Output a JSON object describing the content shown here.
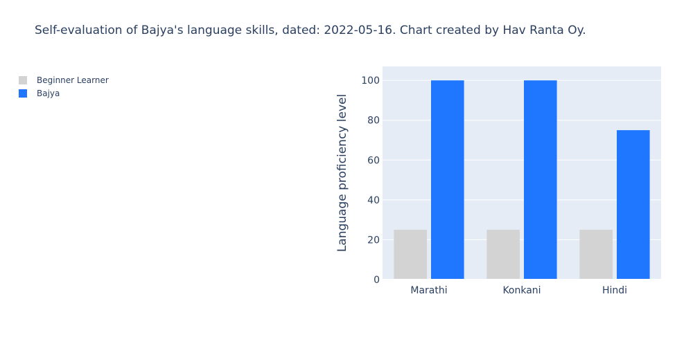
{
  "title": "Self-evaluation of Bajya's language skills, dated: 2022-05-16. Chart created by Hav Ranta Oy.",
  "colors": {
    "plot_bg": "#e5ecf6",
    "grid": "#ffffff",
    "text": "#2a3f5f"
  },
  "chart_data": {
    "type": "bar",
    "title": "Self-evaluation of Bajya's language skills, dated: 2022-05-16. Chart created by Hav Ranta Oy.",
    "xlabel": "",
    "ylabel": "Language proficiency level",
    "categories": [
      "Marathi",
      "Konkani",
      "Hindi"
    ],
    "ylim": [
      0,
      107
    ],
    "yticks": [
      0,
      20,
      40,
      60,
      80,
      100
    ],
    "grid": true,
    "legend_position": "top-left",
    "series": [
      {
        "name": "Beginner Learner",
        "color": "#d3d3d3",
        "values": [
          25,
          25,
          25
        ]
      },
      {
        "name": "Bajya",
        "color": "#1f77ff",
        "values": [
          100,
          100,
          75
        ]
      }
    ]
  }
}
